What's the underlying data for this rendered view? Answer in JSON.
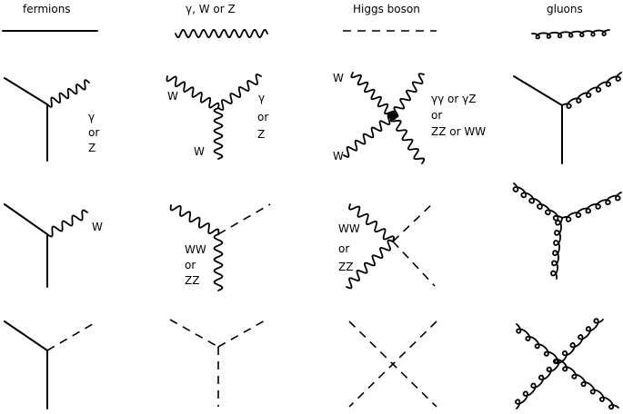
{
  "headers": {
    "fermions": "fermions",
    "bosons": "γ, W or Z",
    "higgs": "Higgs boson",
    "gluons": "gluons"
  },
  "labels": {
    "row1_fermion_gamma": "γ",
    "row1_fermion_or": "or",
    "row1_fermion_z": "Z",
    "row1_boson_w_left": "W",
    "row1_boson_gamma": "γ",
    "row1_boson_or": "or",
    "row1_boson_z": "Z",
    "row1_boson_w_bottom": "W",
    "row1_higgs_w_top": "W",
    "row1_higgs_w_bottom": "W",
    "row1_higgs_line1": "γγ  or  γZ",
    "row1_higgs_line2": "or",
    "row1_higgs_line3": "ZZ  or  WW",
    "row2_fermion_w": "W",
    "row2_boson_ww": "WW",
    "row2_boson_or": "or",
    "row2_boson_zz": "ZZ",
    "row2_higgs_ww": "WW",
    "row2_higgs_or": "or",
    "row2_higgs_zz": "ZZ"
  }
}
